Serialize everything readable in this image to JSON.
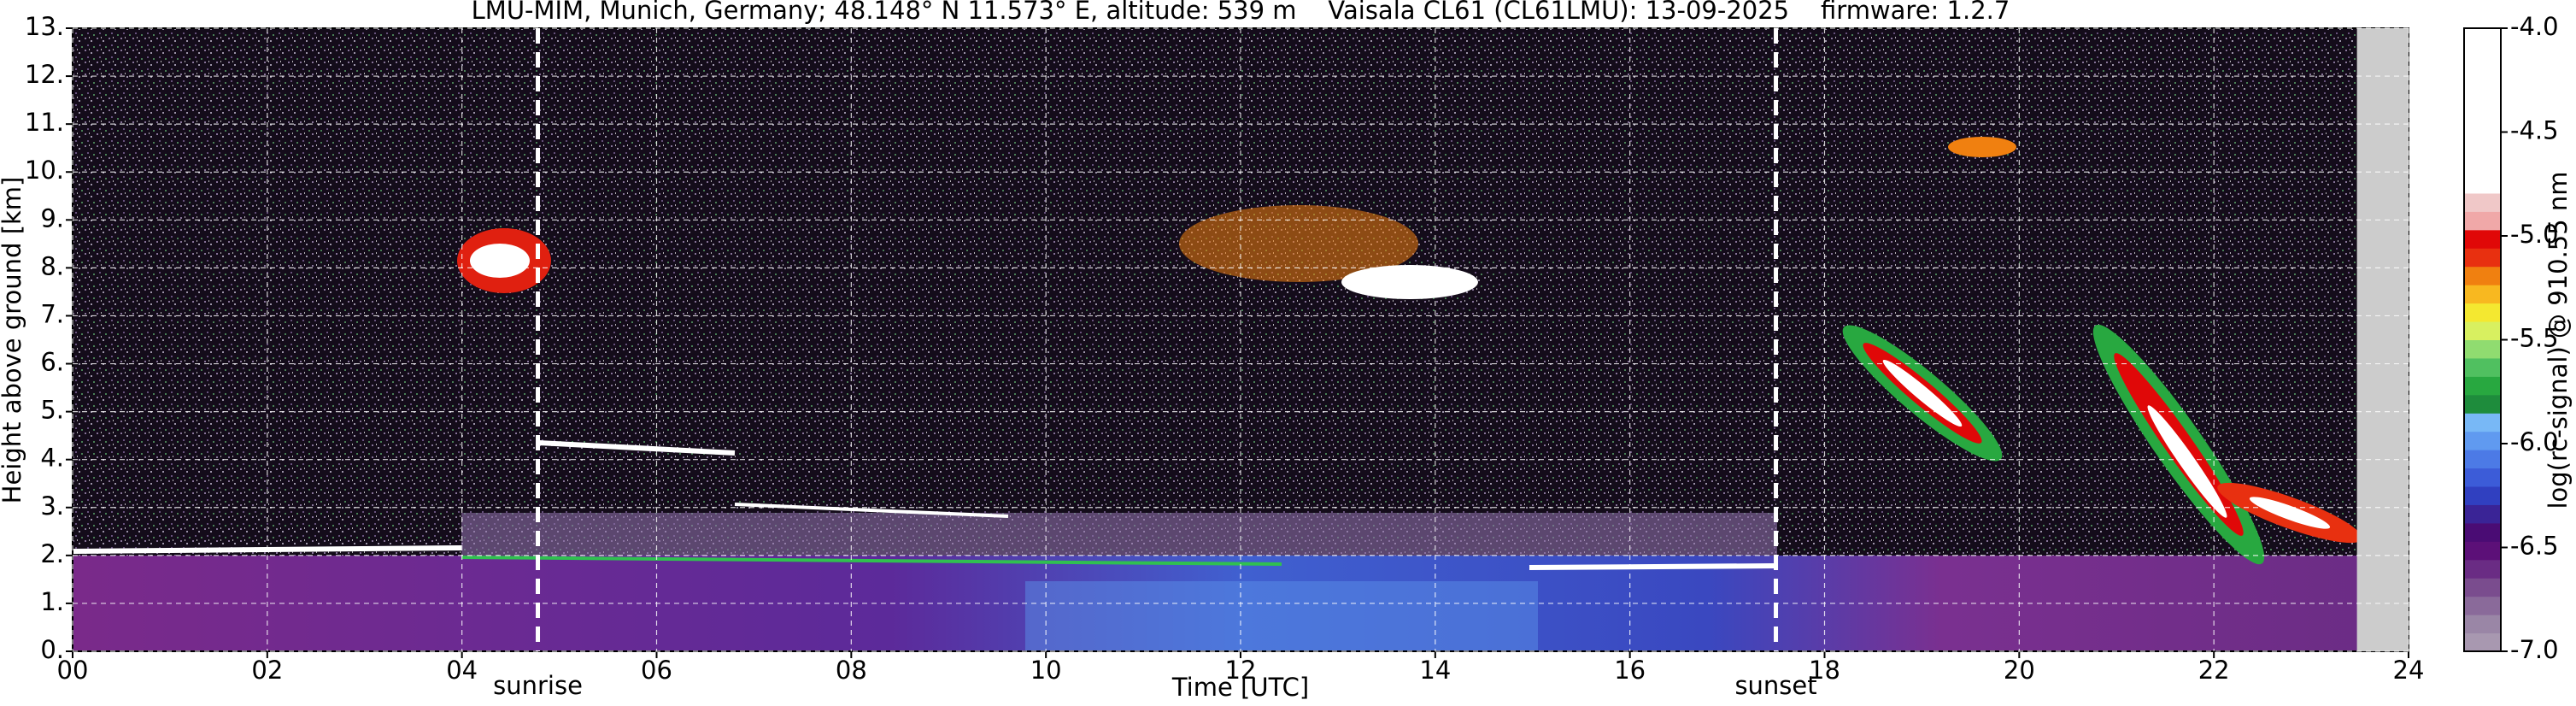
{
  "chart_data": {
    "type": "heatmap",
    "title": "LMU-MIM, Munich, Germany; 48.148° N 11.573° E, altitude: 539 m    Vaisala CL61 (CL61LMU): 13-09-2025    firmware: 1.2.7",
    "x_label": "Time [UTC]",
    "y_label": "Height above ground [km]",
    "xlim": [
      0,
      24
    ],
    "xticks": [
      {
        "value": 0,
        "label": "00"
      },
      {
        "value": 2,
        "label": "02"
      },
      {
        "value": 4,
        "label": "04"
      },
      {
        "value": 6,
        "label": "06"
      },
      {
        "value": 8,
        "label": "08"
      },
      10,
      12,
      14,
      16,
      18,
      20,
      22,
      24
    ],
    "ylim": [
      0,
      13
    ],
    "yticks": [
      {
        "value": 0,
        "label": "0."
      },
      {
        "value": 1,
        "label": "1."
      },
      {
        "value": 2,
        "label": "2."
      },
      {
        "value": 3,
        "label": "3."
      },
      {
        "value": 4,
        "label": "4."
      },
      {
        "value": 5,
        "label": "5."
      },
      {
        "value": 6,
        "label": "6."
      },
      {
        "value": 7,
        "label": "7."
      },
      {
        "value": 8,
        "label": "8."
      },
      {
        "value": 9,
        "label": "9."
      },
      {
        "value": 10,
        "label": "10."
      },
      {
        "value": 11,
        "label": "11."
      },
      {
        "value": 12,
        "label": "12."
      },
      {
        "value": 13,
        "label": "13."
      }
    ],
    "grid": true,
    "data_end": 23.47,
    "annotations": [
      {
        "x": 4.78,
        "label": "sunrise"
      },
      {
        "x": 17.5,
        "label": "sunset"
      }
    ],
    "colorbar": {
      "label": "log(rc-signal) @ 910.55 nm",
      "clim": [
        -7,
        -4
      ],
      "ticks": [
        {
          "value": -4,
          "label": "-4.0"
        },
        -4.5,
        {
          "value": -5,
          "label": "-5.0"
        },
        -5.5,
        {
          "value": -6,
          "label": "-6.0"
        },
        -6.5,
        {
          "value": -7,
          "label": "-7.0"
        }
      ],
      "colors": [
        "#a898b0",
        "#9a86a6",
        "#8a6a9a",
        "#7a4c8e",
        "#6a2c84",
        "#5c1078",
        "#4a0c74",
        "#3a2496",
        "#3040c0",
        "#3c5cd8",
        "#4c7ae6",
        "#609af0",
        "#78b8f6",
        "#1e8c3c",
        "#28a840",
        "#50c060",
        "#90dc70",
        "#d8f060",
        "#f4e830",
        "#f8b820",
        "#f08010",
        "#e83010",
        "#e00808",
        "#f0a8a8",
        "#f0c8c8",
        "#ffffff",
        "#ffffff",
        "#ffffff",
        "#ffffff",
        "#ffffff",
        "#ffffff",
        "#ffffff",
        "#ffffff",
        "#ffffff"
      ]
    }
  }
}
